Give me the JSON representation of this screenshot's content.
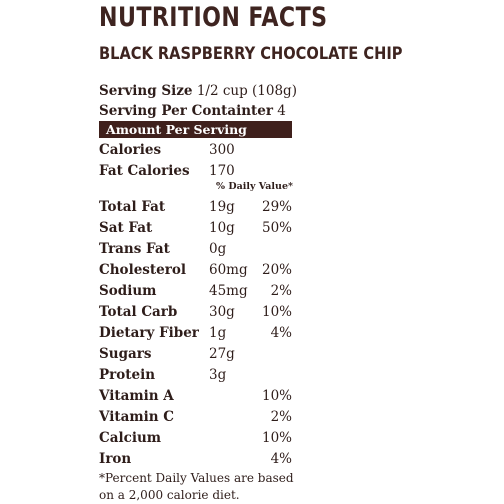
{
  "title": "NUTRITION FACTS",
  "product_name": "BLACK RASPBERRY CHOCOLATE CHIP",
  "serving_size": {
    "label": "Serving Size",
    "value": "1/2 cup (108g)"
  },
  "servings_per_container": {
    "label": "Serving Per Containter",
    "value": "4"
  },
  "amount_per_serving": "Amount Per Serving",
  "calories": {
    "label": "Calories",
    "value": "300"
  },
  "fat_calories": {
    "label": "Fat Calories",
    "value": "170"
  },
  "daily_value_header": "% Daily Value*",
  "nutrients": [
    {
      "label": "Total Fat",
      "amount": "19g",
      "pct": "29%"
    },
    {
      "label": "Sat Fat",
      "amount": "10g",
      "pct": "50%"
    },
    {
      "label": "Trans Fat",
      "amount": "0g",
      "pct": ""
    },
    {
      "label": "Cholesterol",
      "amount": "60mg",
      "pct": "20%"
    },
    {
      "label": "Sodium",
      "amount": "45mg",
      "pct": "2%"
    },
    {
      "label": "Total Carb",
      "amount": "30g",
      "pct": "10%"
    },
    {
      "label": "Dietary Fiber",
      "amount": "1g",
      "pct": "4%"
    },
    {
      "label": "Sugars",
      "amount": "27g",
      "pct": ""
    },
    {
      "label": "Protein",
      "amount": "3g",
      "pct": ""
    },
    {
      "label": "Vitamin A",
      "amount": "",
      "pct": "10%"
    },
    {
      "label": "Vitamin C",
      "amount": "",
      "pct": "2%"
    },
    {
      "label": "Calcium",
      "amount": "",
      "pct": "10%"
    },
    {
      "label": "Iron",
      "amount": "",
      "pct": "4%"
    }
  ],
  "footnote": "*Percent Daily Values are based on a 2,000 calorie diet.",
  "colors": {
    "text": "#3e2420",
    "band": "#3f201c",
    "band_text": "#ffffff"
  }
}
